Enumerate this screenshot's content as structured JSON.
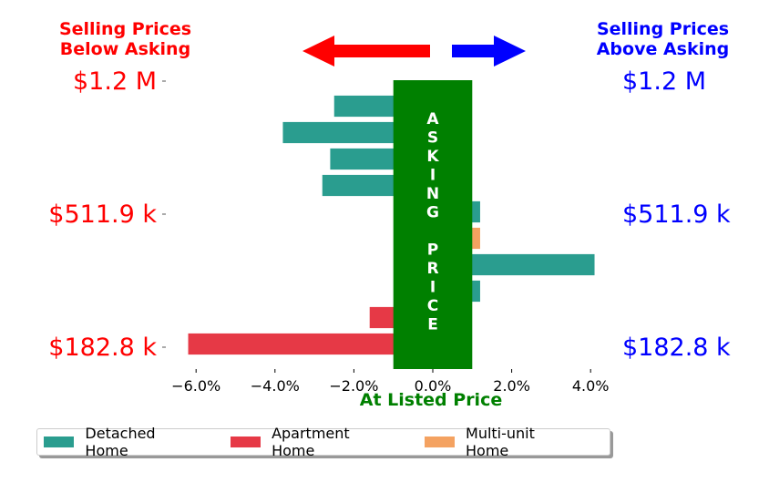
{
  "header": {
    "left": [
      "Selling Prices",
      "Below Asking"
    ],
    "right": [
      "Selling Prices",
      "Above Asking"
    ],
    "left_color": "#ff0000",
    "right_color": "#0000ff"
  },
  "arrows": {
    "left": {
      "icon": "arrow-left-icon",
      "color": "#ff0000"
    },
    "right": {
      "icon": "arrow-right-icon",
      "color": "#0000ff"
    }
  },
  "band": {
    "text_top": "ASKING",
    "text_bottom": "PRICE",
    "color": "#008000"
  },
  "colors": {
    "Detached Home": "#2a9d8f",
    "Apartment Home": "#e63946",
    "Multi-unit Home": "#f4a261"
  },
  "chart_data": {
    "type": "bar",
    "orientation": "horizontal",
    "xlabel": "At Listed Price",
    "xlim": [
      -6.6,
      4.4
    ],
    "xticks": [
      -6,
      -4,
      -2,
      0,
      2,
      4
    ],
    "xtick_labels": [
      "−6.0%",
      "−4.0%",
      "−2.0%",
      "0.0%",
      "2.0%",
      "4.0%"
    ],
    "ylabels_left": [
      "$1.2 M",
      "$511.9 k",
      "$182.8 k"
    ],
    "ylabels_right": [
      "$1.2 M",
      "$511.9 k",
      "$182.8 k"
    ],
    "legend_position": "bottom-left",
    "bars": [
      {
        "series": "Detached Home",
        "value": -2.5
      },
      {
        "series": "Detached Home",
        "value": -3.8
      },
      {
        "series": "Detached Home",
        "value": -2.6
      },
      {
        "series": "Detached Home",
        "value": -2.8
      },
      {
        "series": "Detached Home",
        "value": 1.2
      },
      {
        "series": "Multi-unit Home",
        "value": 1.2
      },
      {
        "series": "Detached Home",
        "value": 4.1
      },
      {
        "series": "Detached Home",
        "value": 1.2
      },
      {
        "series": "Apartment Home",
        "value": -1.6
      },
      {
        "series": "Apartment Home",
        "value": -6.2
      }
    ],
    "band_range": [
      -1.0,
      1.0
    ],
    "legend": [
      "Detached Home",
      "Apartment Home",
      "Multi-unit Home"
    ]
  }
}
